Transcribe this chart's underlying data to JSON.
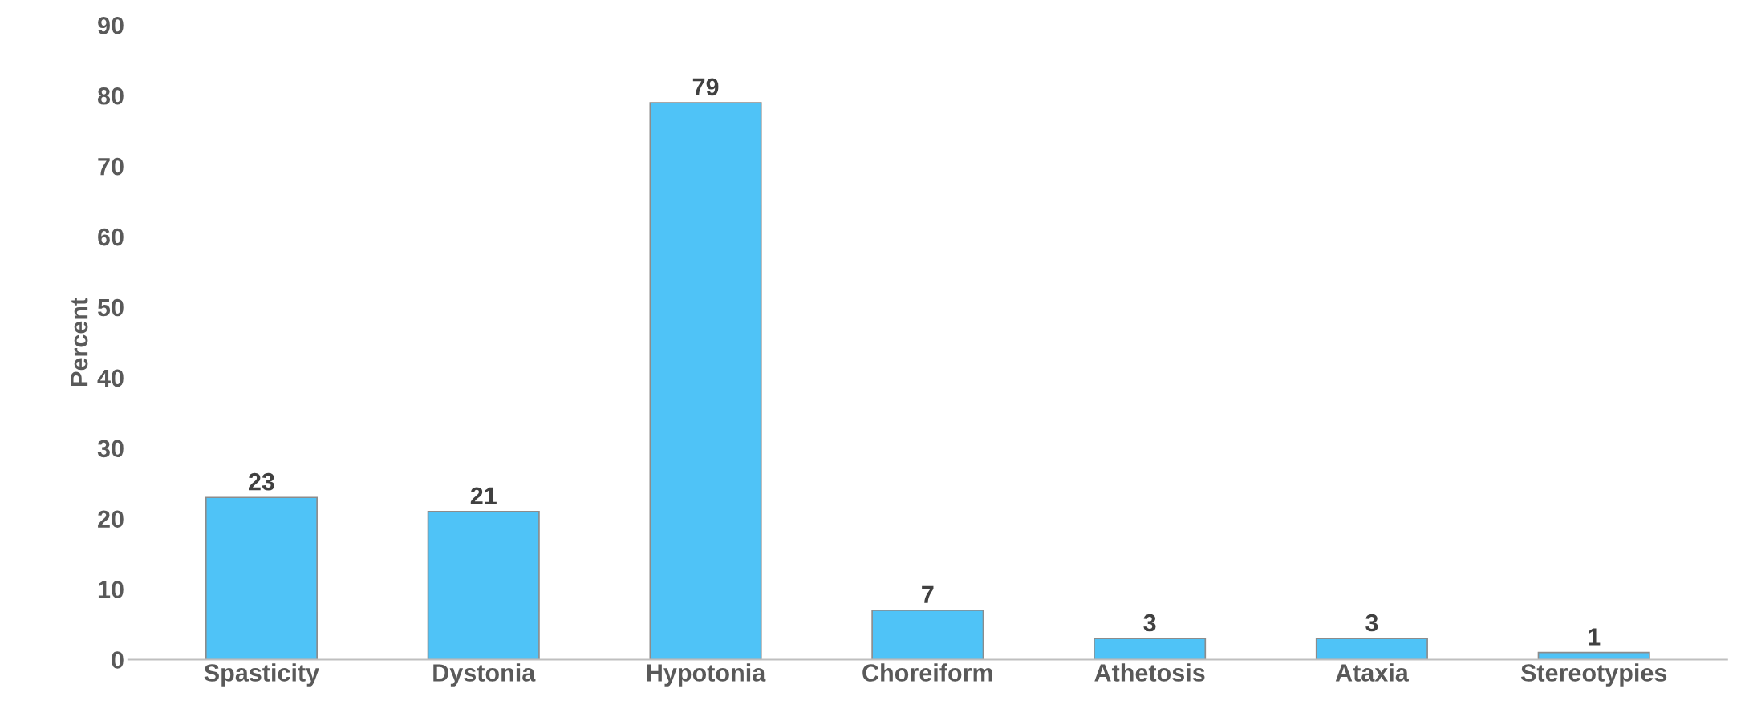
{
  "chart_data": {
    "type": "bar",
    "ylabel": "Percent",
    "categories": [
      "Spasticity",
      "Dystonia",
      "Hypotonia",
      "Choreiform",
      "Athetosis",
      "Ataxia",
      "Stereotypies"
    ],
    "values": [
      23,
      21,
      79,
      7,
      3,
      3,
      1
    ],
    "color": "#4fc3f7",
    "ylim": [
      0,
      90
    ],
    "yticks": [
      0,
      10,
      20,
      30,
      40,
      50,
      60,
      70,
      80,
      90
    ],
    "grid": false,
    "data_labels": true
  }
}
